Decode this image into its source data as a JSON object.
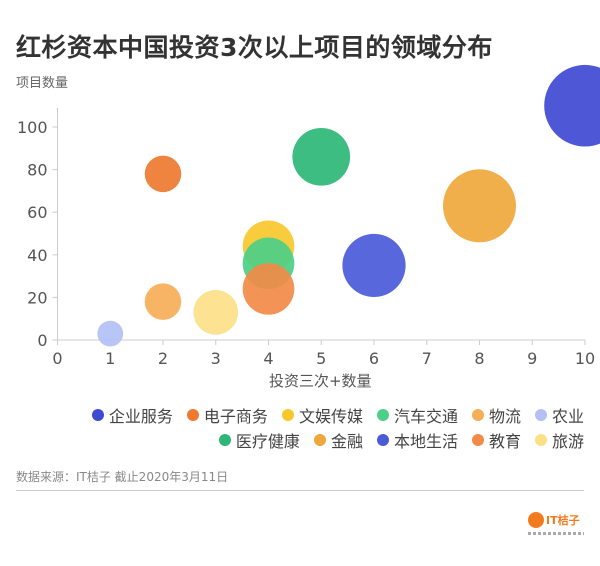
{
  "title": "红杉资本中国投资3次以上项目的领域分布",
  "source": "数据来源：IT桔子 截止2020年3月11日",
  "logo": {
    "text": "IT桔子",
    "color": "#f47a20"
  },
  "chart_data": {
    "type": "bubble",
    "title": "红杉资本中国投资3次以上项目的领域分布",
    "xlabel": "投资三次+数量",
    "ylabel": "项目数量",
    "xlim": [
      0,
      10
    ],
    "ylim": [
      0,
      110
    ],
    "xticks": [
      "0",
      "1",
      "2",
      "3",
      "4",
      "5",
      "6",
      "7",
      "8",
      "9",
      "10"
    ],
    "yticks": [
      "0",
      "20",
      "40",
      "60",
      "80",
      "100"
    ],
    "grid": false,
    "legend_position": "bottom",
    "series": [
      {
        "name": "企业服务",
        "x": 10,
        "y": 110,
        "size": 10,
        "color": "#3f4ad3"
      },
      {
        "name": "医疗健康",
        "x": 5,
        "y": 86,
        "size": 5,
        "color": "#2cb777"
      },
      {
        "name": "电子商务",
        "x": 2,
        "y": 78,
        "size": 2,
        "color": "#ed7a30"
      },
      {
        "name": "金融",
        "x": 8,
        "y": 63,
        "size": 8,
        "color": "#f0a83c"
      },
      {
        "name": "文娱传媒",
        "x": 4,
        "y": 44,
        "size": 4,
        "color": "#f7c82c"
      },
      {
        "name": "本地生活",
        "x": 6,
        "y": 35,
        "size": 6,
        "color": "#4a5ad8"
      },
      {
        "name": "汽车交通",
        "x": 4,
        "y": 36,
        "size": 4,
        "color": "#4ccf88"
      },
      {
        "name": "教育",
        "x": 4,
        "y": 24,
        "size": 4,
        "color": "#f28a48"
      },
      {
        "name": "物流",
        "x": 2,
        "y": 18,
        "size": 2,
        "color": "#f7ae58"
      },
      {
        "name": "旅游",
        "x": 3,
        "y": 13,
        "size": 3,
        "color": "#fddf88"
      },
      {
        "name": "农业",
        "x": 1,
        "y": 3,
        "size": 1,
        "color": "#b2c0f6"
      }
    ]
  }
}
